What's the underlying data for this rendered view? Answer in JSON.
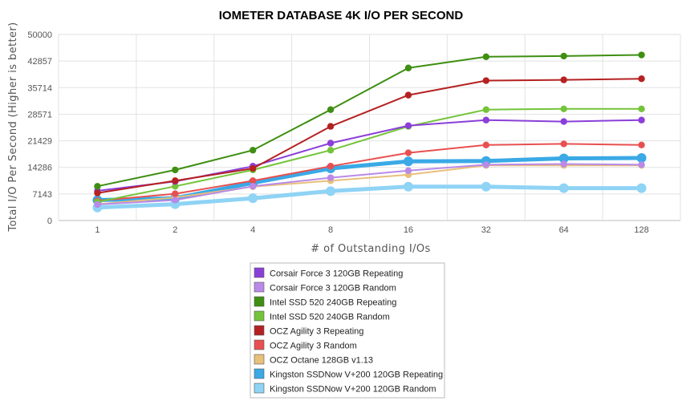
{
  "chart_data": {
    "type": "line",
    "title": "IOMETER DATABASE 4K I/O PER SECOND",
    "xlabel": "# of Outstanding I/Os",
    "ylabel": "Total I/O Per Second (Higher is better)",
    "categories": [
      "1",
      "2",
      "4",
      "8",
      "16",
      "32",
      "64",
      "128"
    ],
    "y_ticks": [
      "0",
      "7143",
      "14286",
      "21429",
      "28571",
      "35714",
      "42857",
      "50000"
    ],
    "ylim": [
      0,
      50000
    ],
    "grid": true,
    "legend_position": "bottom",
    "series": [
      {
        "name": "Corsair Force 3 120GB Repeating",
        "color": "#8b3fd9",
        "values": [
          8000,
          10500,
          14600,
          20800,
          25500,
          27000,
          26600,
          27000
        ]
      },
      {
        "name": "Corsair Force 3 120GB Random",
        "color": "#b98ae8",
        "values": [
          4300,
          5500,
          9200,
          11500,
          13400,
          15000,
          15200,
          15000
        ]
      },
      {
        "name": "Intel SSD 520 240GB Repeating",
        "color": "#3e8f12",
        "values": [
          9200,
          13600,
          18900,
          29800,
          41000,
          44000,
          44200,
          44500
        ]
      },
      {
        "name": "Intel SSD 520 240GB Random",
        "color": "#74c43a",
        "values": [
          5000,
          9200,
          13600,
          18900,
          25300,
          29800,
          30000,
          30000
        ]
      },
      {
        "name": "OCZ Agility 3 Repeating",
        "color": "#b52121",
        "values": [
          7400,
          10700,
          14000,
          25300,
          33700,
          37600,
          37800,
          38100
        ]
      },
      {
        "name": "OCZ Agility 3 Random",
        "color": "#e85050",
        "values": [
          5300,
          7200,
          10700,
          14600,
          18200,
          20300,
          20600,
          20300
        ]
      },
      {
        "name": "OCZ Octane 128GB v1.13",
        "color": "#e8c07a",
        "values": [
          4400,
          6200,
          9100,
          10700,
          12300,
          14800,
          14800,
          14800
        ]
      },
      {
        "name": "Kingston SSDNow V+200 120GB Repeating",
        "color": "#3aa9e6",
        "values": [
          5500,
          6000,
          10100,
          14000,
          15900,
          16000,
          16700,
          16800
        ]
      },
      {
        "name": "Kingston SSDNow V+200 120GB Random",
        "color": "#8fd3f5",
        "values": [
          3500,
          4400,
          6000,
          7900,
          9100,
          9100,
          8700,
          8700
        ]
      }
    ]
  }
}
